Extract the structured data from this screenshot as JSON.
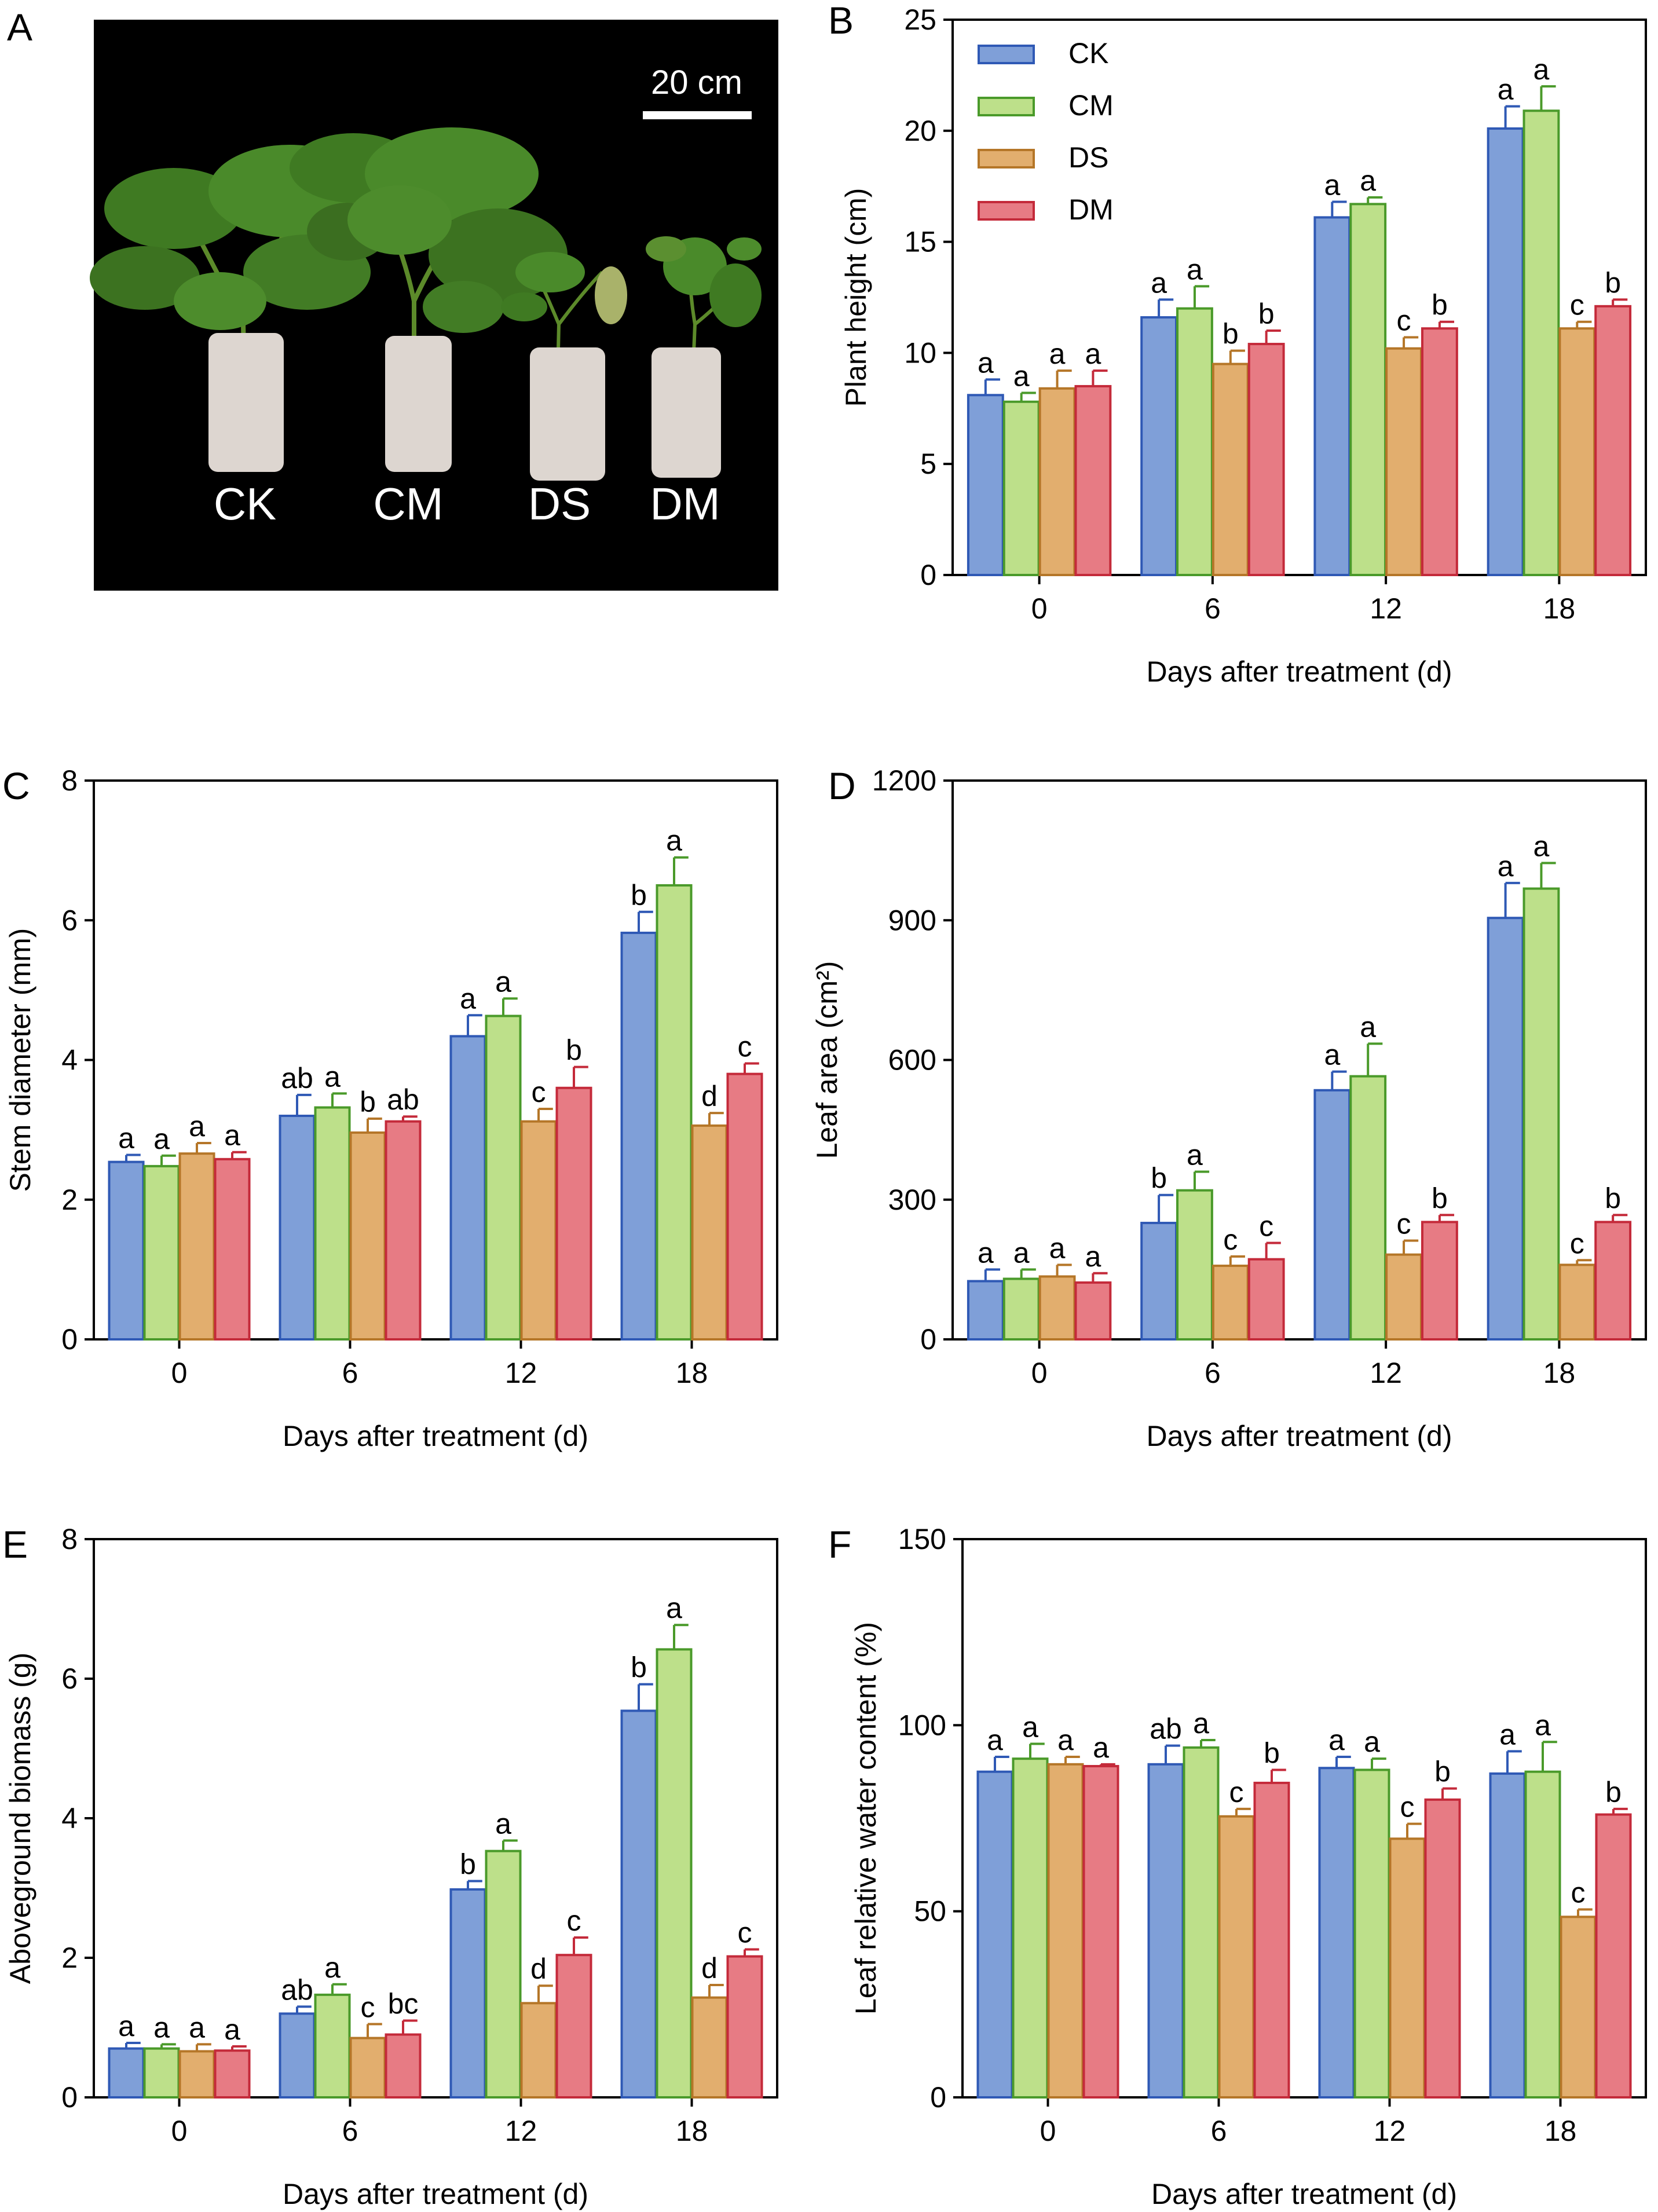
{
  "figure": {
    "series_names": [
      "CK",
      "CM",
      "DS",
      "DM"
    ],
    "colors": {
      "CK": {
        "fill": "#7f9fd8",
        "stroke": "#2f59b5"
      },
      "CM": {
        "fill": "#bde08a",
        "stroke": "#4a9a2a"
      },
      "DS": {
        "fill": "#e2ae6e",
        "stroke": "#b57628"
      },
      "DM": {
        "fill": "#e77b84",
        "stroke": "#c42a3a"
      }
    }
  },
  "photo": {
    "letter": "A",
    "scale_bar": "20 cm",
    "labels": [
      "CK",
      "CM",
      "DS",
      "DM"
    ]
  },
  "chart_data": [
    {
      "panel": "B",
      "type": "bar",
      "categories": [
        "0",
        "6",
        "12",
        "18"
      ],
      "xlabel": "Days after treatment (d)",
      "ylabel": "Plant height (cm)",
      "ylim": [
        0,
        25
      ],
      "yticks": [
        "0",
        "5",
        "10",
        "15",
        "20",
        "25"
      ],
      "legend": "top-left",
      "series": [
        {
          "name": "CK",
          "values": [
            8.1,
            11.6,
            16.1,
            20.1
          ],
          "errors": [
            0.7,
            0.8,
            0.7,
            1.0
          ],
          "letters": [
            "a",
            "a",
            "a",
            "a"
          ]
        },
        {
          "name": "CM",
          "values": [
            7.8,
            12.0,
            16.7,
            20.9
          ],
          "errors": [
            0.4,
            1.0,
            0.3,
            1.1
          ],
          "letters": [
            "a",
            "a",
            "a",
            "a"
          ]
        },
        {
          "name": "DS",
          "values": [
            8.4,
            9.5,
            10.2,
            11.1
          ],
          "errors": [
            0.8,
            0.6,
            0.5,
            0.3
          ],
          "letters": [
            "a",
            "b",
            "c",
            "c"
          ]
        },
        {
          "name": "DM",
          "values": [
            8.5,
            10.4,
            11.1,
            12.1
          ],
          "errors": [
            0.7,
            0.6,
            0.3,
            0.3
          ],
          "letters": [
            "a",
            "b",
            "b",
            "b"
          ]
        }
      ]
    },
    {
      "panel": "C",
      "type": "bar",
      "categories": [
        "0",
        "6",
        "12",
        "18"
      ],
      "xlabel": "Days after treatment (d)",
      "ylabel": "Stem diameter (mm)",
      "ylim": [
        0,
        8
      ],
      "yticks": [
        "0",
        "2",
        "4",
        "6",
        "8"
      ],
      "series": [
        {
          "name": "CK",
          "values": [
            2.54,
            3.2,
            4.34,
            5.82
          ],
          "errors": [
            0.1,
            0.3,
            0.3,
            0.3
          ],
          "letters": [
            "a",
            "ab",
            "a",
            "b"
          ]
        },
        {
          "name": "CM",
          "values": [
            2.48,
            3.32,
            4.63,
            6.5
          ],
          "errors": [
            0.15,
            0.2,
            0.25,
            0.4
          ],
          "letters": [
            "a",
            "a",
            "a",
            "a"
          ]
        },
        {
          "name": "DS",
          "values": [
            2.66,
            2.96,
            3.12,
            3.06
          ],
          "errors": [
            0.15,
            0.2,
            0.18,
            0.18
          ],
          "letters": [
            "a",
            "b",
            "c",
            "d"
          ]
        },
        {
          "name": "DM",
          "values": [
            2.58,
            3.12,
            3.6,
            3.8
          ],
          "errors": [
            0.1,
            0.07,
            0.3,
            0.15
          ],
          "letters": [
            "a",
            "ab",
            "b",
            "c"
          ]
        }
      ]
    },
    {
      "panel": "D",
      "type": "bar",
      "categories": [
        "0",
        "6",
        "12",
        "18"
      ],
      "xlabel": "Days after treatment (d)",
      "ylabel": "Leaf area (cm²)",
      "ylim": [
        0,
        1200
      ],
      "yticks": [
        "0",
        "300",
        "600",
        "900",
        "1200"
      ],
      "series": [
        {
          "name": "CK",
          "values": [
            125,
            250,
            535,
            905
          ],
          "errors": [
            25,
            60,
            40,
            75
          ],
          "letters": [
            "a",
            "b",
            "a",
            "a"
          ]
        },
        {
          "name": "CM",
          "values": [
            130,
            320,
            565,
            968
          ],
          "errors": [
            20,
            40,
            70,
            55
          ],
          "letters": [
            "a",
            "a",
            "a",
            "a"
          ]
        },
        {
          "name": "DS",
          "values": [
            135,
            158,
            182,
            160
          ],
          "errors": [
            25,
            20,
            30,
            10
          ],
          "letters": [
            "a",
            "c",
            "c",
            "c"
          ]
        },
        {
          "name": "DM",
          "values": [
            122,
            172,
            252,
            252
          ],
          "errors": [
            20,
            35,
            15,
            15
          ],
          "letters": [
            "a",
            "c",
            "b",
            "b"
          ]
        }
      ]
    },
    {
      "panel": "E",
      "type": "bar",
      "categories": [
        "0",
        "6",
        "12",
        "18"
      ],
      "xlabel": "Days after treatment (d)",
      "ylabel": "Aboveground biomass (g)",
      "ylim": [
        0,
        8
      ],
      "yticks": [
        "0",
        "2",
        "4",
        "6",
        "8"
      ],
      "series": [
        {
          "name": "CK",
          "values": [
            0.7,
            1.2,
            2.98,
            5.54
          ],
          "errors": [
            0.08,
            0.1,
            0.12,
            0.38
          ],
          "letters": [
            "a",
            "ab",
            "b",
            "b"
          ]
        },
        {
          "name": "CM",
          "values": [
            0.7,
            1.47,
            3.53,
            6.42
          ],
          "errors": [
            0.06,
            0.15,
            0.15,
            0.35
          ],
          "letters": [
            "a",
            "a",
            "a",
            "a"
          ]
        },
        {
          "name": "DS",
          "values": [
            0.66,
            0.85,
            1.35,
            1.43
          ],
          "errors": [
            0.1,
            0.2,
            0.25,
            0.18
          ],
          "letters": [
            "a",
            "c",
            "d",
            "d"
          ]
        },
        {
          "name": "DM",
          "values": [
            0.67,
            0.9,
            2.04,
            2.02
          ],
          "errors": [
            0.06,
            0.2,
            0.25,
            0.1
          ],
          "letters": [
            "a",
            "bc",
            "c",
            "c"
          ]
        }
      ]
    },
    {
      "panel": "F",
      "type": "bar",
      "categories": [
        "0",
        "6",
        "12",
        "18"
      ],
      "xlabel": "Days after treatment (d)",
      "ylabel": "Leaf relative water content (%)",
      "ylim": [
        0,
        150
      ],
      "yticks": [
        "0",
        "50",
        "100",
        "150"
      ],
      "series": [
        {
          "name": "CK",
          "values": [
            87.5,
            89.5,
            88.5,
            87.0
          ],
          "errors": [
            4,
            5,
            3,
            6
          ],
          "letters": [
            "a",
            "ab",
            "a",
            "a"
          ]
        },
        {
          "name": "CM",
          "values": [
            91.0,
            94.0,
            88.0,
            87.5
          ],
          "errors": [
            4,
            2,
            3,
            8
          ],
          "letters": [
            "a",
            "a",
            "a",
            "a"
          ]
        },
        {
          "name": "DS",
          "values": [
            89.5,
            75.5,
            69.5,
            48.5
          ],
          "errors": [
            2,
            2,
            4,
            2
          ],
          "letters": [
            "a",
            "c",
            "c",
            "c"
          ]
        },
        {
          "name": "DM",
          "values": [
            89.0,
            84.5,
            80.0,
            76.0
          ],
          "errors": [
            0.5,
            3.5,
            3,
            1.5
          ],
          "letters": [
            "a",
            "b",
            "b",
            "b"
          ]
        }
      ]
    }
  ]
}
